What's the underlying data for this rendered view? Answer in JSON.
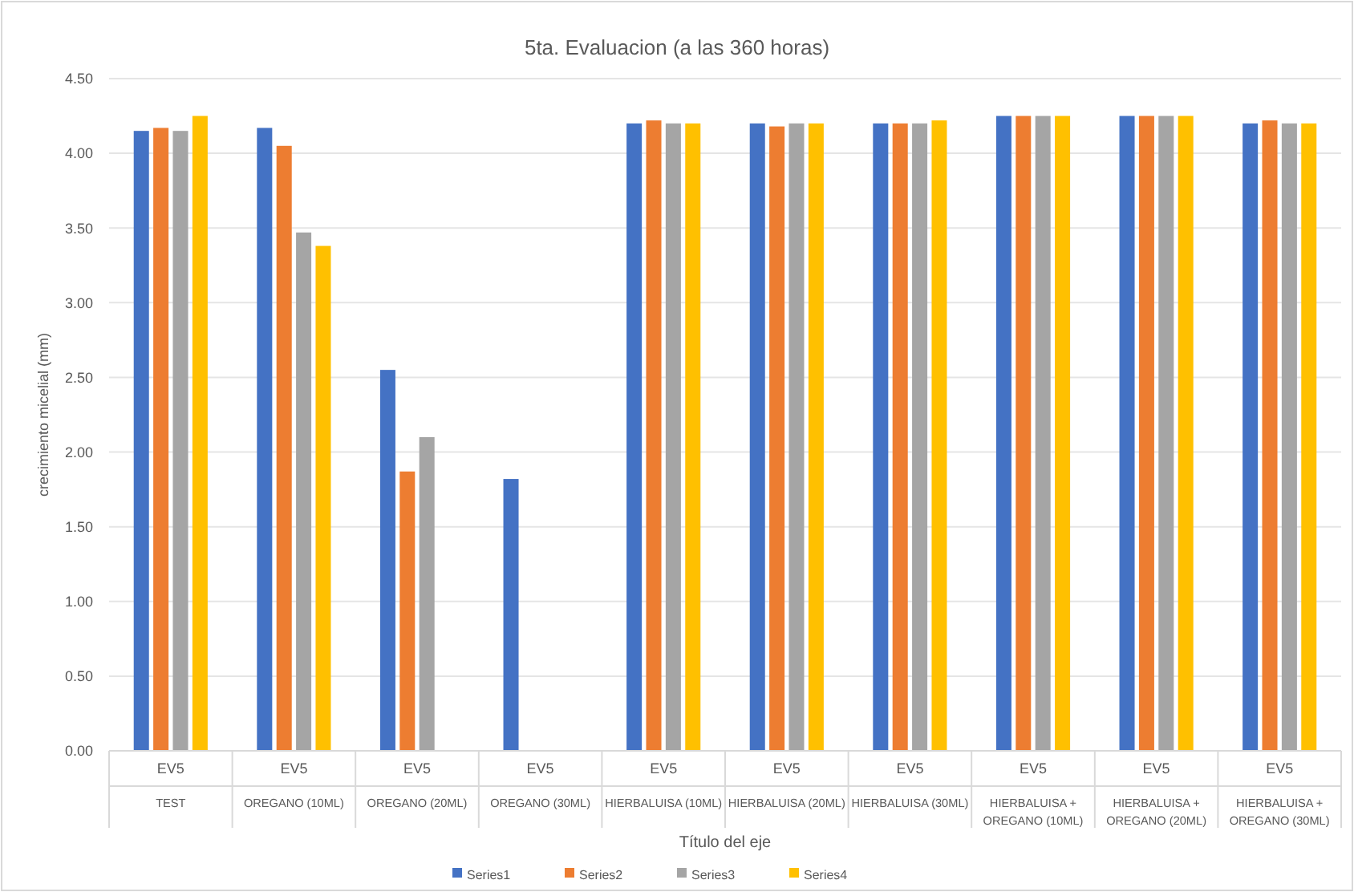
{
  "chart_data": {
    "type": "bar",
    "title": "5ta. Evaluacion (a las 360 horas)",
    "xlabel": "Título del eje",
    "ylabel": "crecimiento micelial (mm)",
    "categories": [
      "TEST",
      "OREGANO (10ML)",
      "OREGANO (20ML)",
      "OREGANO (30ML)",
      "HIERBALUISA (10ML)",
      "HIERBALUISA (20ML)",
      "HIERBALUISA (30ML)",
      "HIERBALUISA + OREGANO (10ML)",
      "HIERBALUISA + OREGANO (20ML)",
      "HIERBALUISA + OREGANO (30ML)"
    ],
    "annotations": [
      "EV5",
      "EV5",
      "EV5",
      "EV5",
      "EV5",
      "EV5",
      "EV5",
      "EV5",
      "EV5",
      "EV5"
    ],
    "series": [
      {
        "name": "Series1",
        "color": "#4472c4",
        "values": [
          4.15,
          4.17,
          2.55,
          1.82,
          4.2,
          4.2,
          4.2,
          4.25,
          4.25,
          4.2
        ]
      },
      {
        "name": "Series2",
        "color": "#ed7d31",
        "values": [
          4.17,
          4.05,
          1.87,
          null,
          4.22,
          4.18,
          4.2,
          4.25,
          4.25,
          4.22
        ]
      },
      {
        "name": "Series3",
        "color": "#a5a5a5",
        "values": [
          4.15,
          3.47,
          2.1,
          null,
          4.2,
          4.2,
          4.2,
          4.25,
          4.25,
          4.2
        ]
      },
      {
        "name": "Series4",
        "color": "#ffc000",
        "values": [
          4.25,
          3.38,
          null,
          null,
          4.2,
          4.2,
          4.22,
          4.25,
          4.25,
          4.2
        ]
      }
    ],
    "ylim": [
      0,
      4.5
    ],
    "yticks": [
      {
        "value": 0,
        "label": "0.00"
      },
      {
        "value": 0.5,
        "label": "0.50"
      },
      {
        "value": 1,
        "label": "1.00"
      },
      {
        "value": 1.5,
        "label": "1.50"
      },
      {
        "value": 2,
        "label": "2.00"
      },
      {
        "value": 2.5,
        "label": "2.50"
      },
      {
        "value": 3,
        "label": "3.00"
      },
      {
        "value": 3.5,
        "label": "3.50"
      },
      {
        "value": 4,
        "label": "4.00"
      },
      {
        "value": 4.5,
        "label": "4.50"
      }
    ],
    "grid": "y",
    "legend": "bottom"
  }
}
